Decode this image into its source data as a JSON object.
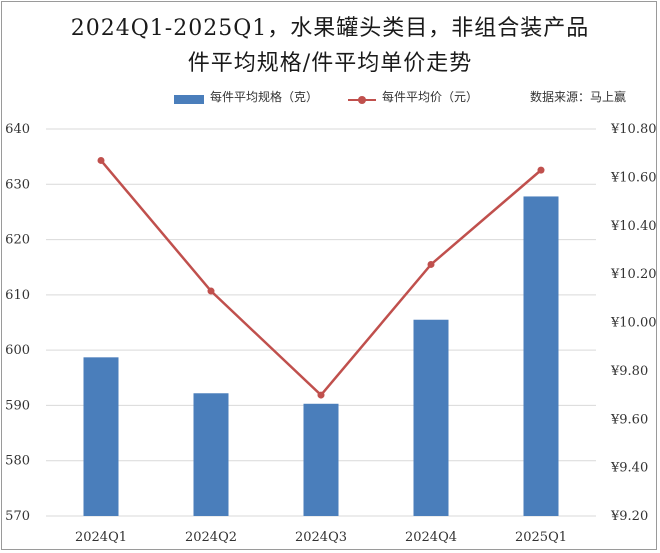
{
  "title_line1": "2024Q1-2025Q1，水果罐头类目，非组合装产品",
  "title_line2": "件平均规格/件平均单价走势",
  "legend": {
    "bar_label": "每件平均规格（克）",
    "line_label": "每件平均价（元）"
  },
  "source": "数据来源：马上赢",
  "colors": {
    "bar": "#4a7ebb",
    "line": "#c0504d",
    "grid": "#d9d9d9"
  },
  "chart_data": {
    "type": "bar",
    "categories": [
      "2024Q1",
      "2024Q2",
      "2024Q3",
      "2024Q4",
      "2025Q1"
    ],
    "series": [
      {
        "name": "每件平均规格（克）",
        "type": "bar",
        "axis": "left",
        "values": [
          598.7,
          592.2,
          590.3,
          605.5,
          627.8
        ]
      },
      {
        "name": "每件平均价（元）",
        "type": "line",
        "axis": "right",
        "values": [
          10.67,
          10.13,
          9.7,
          10.24,
          10.63
        ]
      }
    ],
    "left_axis": {
      "min": 570,
      "max": 640,
      "ticks": [
        "570",
        "580",
        "590",
        "600",
        "610",
        "620",
        "630",
        "640"
      ]
    },
    "right_axis": {
      "min": 9.2,
      "max": 10.8,
      "ticks": [
        "¥9.20",
        "¥9.40",
        "¥9.60",
        "¥9.80",
        "¥10.00",
        "¥10.20",
        "¥10.40",
        "¥10.60",
        "¥10.80"
      ]
    },
    "grid": true,
    "legend_position": "top"
  }
}
